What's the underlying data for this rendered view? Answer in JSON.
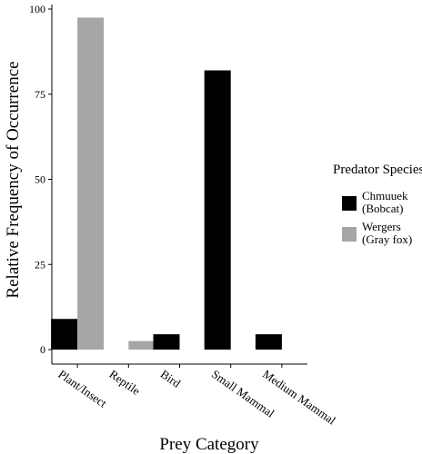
{
  "chart_data": {
    "type": "bar",
    "title": "",
    "xlabel": "Prey Category",
    "ylabel": "Relative Frequency of Occurrence",
    "categories": [
      "Plant/Insect",
      "Reptile",
      "Bird",
      "Small Mammal",
      "Medium Mammal"
    ],
    "yticks": [
      0,
      25,
      50,
      75,
      100
    ],
    "ylim": [
      0,
      100
    ],
    "grid": false,
    "legend_position": "right",
    "legend_title": "Predator Species",
    "series": [
      {
        "name_lines": [
          "Chmuuek",
          "(Bobcat)"
        ],
        "color": "#000000",
        "values": [
          9,
          0,
          4.5,
          82,
          4.5
        ]
      },
      {
        "name_lines": [
          "Wergers",
          "(Gray fox)"
        ],
        "color": "#a6a6a6",
        "values": [
          97.5,
          2.5,
          0,
          0,
          0
        ]
      }
    ]
  }
}
